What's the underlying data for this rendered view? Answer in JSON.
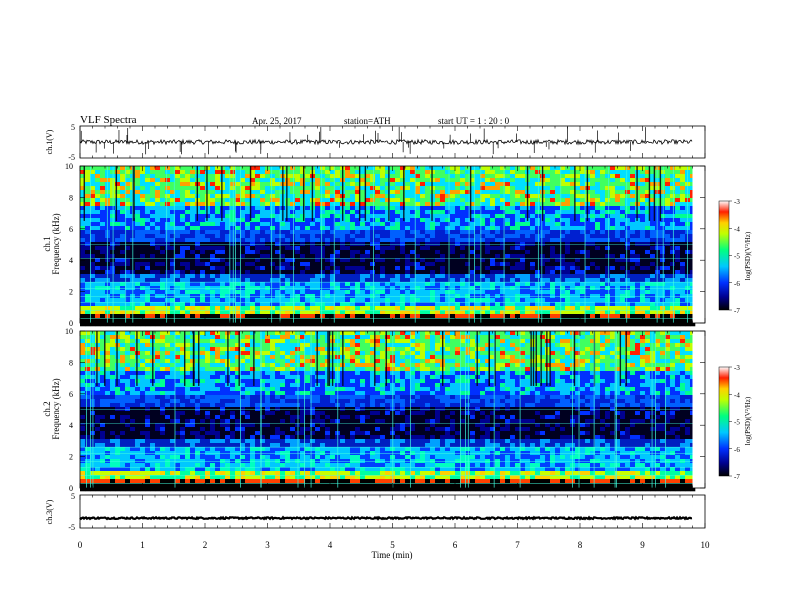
{
  "header": {
    "title": "VLF  Spectra",
    "date": "Apr. 25, 2017",
    "station": "station=ATH",
    "start_ut": "start  UT  =    1  : 20 : 0"
  },
  "chart_data": [
    {
      "type": "line",
      "panel": "ch1-waveform",
      "ylabel": "ch.1(V)",
      "yticks": [
        "5",
        "-5"
      ],
      "ylim": [
        -5,
        5
      ],
      "baseline_level": 0,
      "description_values": {
        "mean": 0,
        "spike_min": -4
      }
    },
    {
      "type": "heatmap",
      "panel": "ch1-spectrogram",
      "ylabel": "ch.1",
      "ylabel2": "Frequency (kHz)",
      "yticks": [
        "0",
        "2",
        "4",
        "6",
        "8",
        "10"
      ],
      "ylim": [
        0,
        10
      ],
      "colorbar": {
        "label": "log(PSD)(V²/Hz)",
        "ticks": [
          "-3",
          "-4",
          "-5",
          "-6",
          "-7"
        ],
        "range": [
          -7,
          -3
        ]
      }
    },
    {
      "type": "heatmap",
      "panel": "ch2-spectrogram",
      "ylabel": "ch.2",
      "ylabel2": "Frequency (kHz)",
      "yticks": [
        "0",
        "2",
        "4",
        "6",
        "8",
        "10"
      ],
      "ylim": [
        0,
        10
      ],
      "colorbar": {
        "label": "log(PSD)(V²/Hz)",
        "ticks": [
          "-3",
          "-4",
          "-5",
          "-6",
          "-7"
        ],
        "range": [
          -7,
          -3
        ]
      }
    },
    {
      "type": "line",
      "panel": "ch3-waveform",
      "ylabel": "ch.3(V)",
      "yticks": [
        "5",
        "-5"
      ],
      "ylim": [
        -5,
        5
      ],
      "baseline_level": -2
    }
  ],
  "xaxis": {
    "label": "Time  (min)",
    "ticks": [
      "0",
      "1",
      "2",
      "3",
      "4",
      "5",
      "6",
      "7",
      "8",
      "9",
      "10"
    ],
    "xlim": [
      0,
      10
    ],
    "data_end": 9.8
  }
}
